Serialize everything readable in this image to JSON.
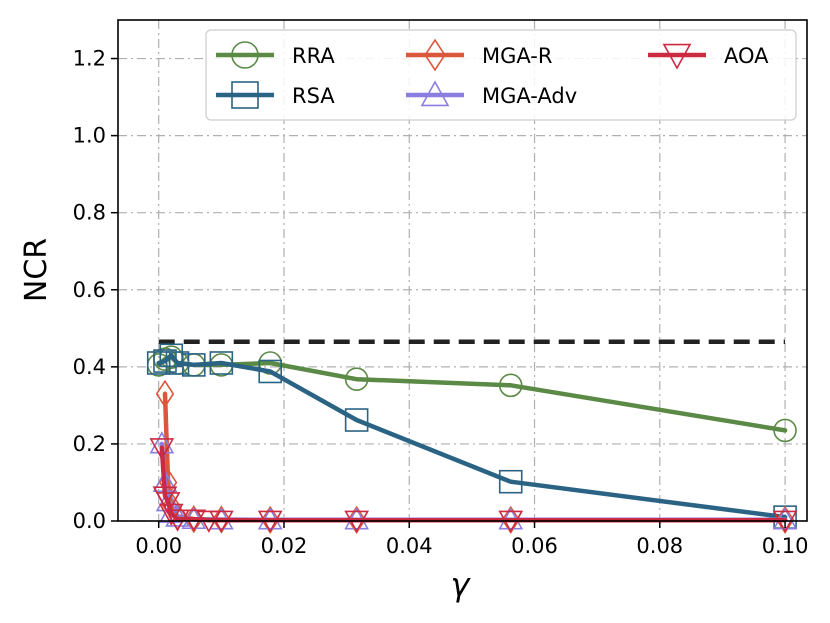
{
  "chart_data": {
    "type": "line",
    "xlabel": "γ",
    "ylabel": "NCR",
    "xlim": [
      -0.0065,
      0.1035
    ],
    "ylim": [
      0.0,
      1.3
    ],
    "xticks": [
      0.0,
      0.02,
      0.04,
      0.06,
      0.08,
      0.1
    ],
    "xtick_labels": [
      "0.00",
      "0.02",
      "0.04",
      "0.06",
      "0.08",
      "0.10"
    ],
    "yticks": [
      0.0,
      0.2,
      0.4,
      0.6,
      0.8,
      1.0,
      1.2
    ],
    "ytick_labels": [
      "0.0",
      "0.2",
      "0.4",
      "0.6",
      "0.8",
      "1.0",
      "1.2"
    ],
    "grid": true,
    "legend_position": "top",
    "reference_line": {
      "y": 0.465,
      "x_range": [
        0.0,
        0.1
      ],
      "style": "dashed",
      "color": "#222222"
    },
    "series": [
      {
        "name": "RRA",
        "color": "#5b8a46",
        "marker": "circle",
        "x": [
          0.0,
          0.001,
          0.002,
          0.003,
          0.0056,
          0.01,
          0.0178,
          0.0316,
          0.0562,
          0.1
        ],
        "y": [
          0.405,
          0.42,
          0.425,
          0.41,
          0.405,
          0.405,
          0.41,
          0.368,
          0.352,
          0.235
        ]
      },
      {
        "name": "RSA",
        "color": "#2b6384",
        "marker": "square",
        "x": [
          0.0,
          0.001,
          0.002,
          0.003,
          0.0056,
          0.01,
          0.0178,
          0.0316,
          0.0562,
          0.1
        ],
        "y": [
          0.41,
          0.415,
          0.43,
          0.41,
          0.405,
          0.41,
          0.388,
          0.262,
          0.102,
          0.01
        ]
      },
      {
        "name": "MGA-R",
        "color": "#d9573b",
        "marker": "diamond",
        "x": [
          0.001,
          0.0015,
          0.002,
          0.003,
          0.0056,
          0.01,
          0.0178,
          0.0316,
          0.0562,
          0.1
        ],
        "y": [
          0.33,
          0.1,
          0.04,
          0.012,
          0.005,
          0.004,
          0.003,
          0.003,
          0.003,
          0.003
        ]
      },
      {
        "name": "MGA-Adv",
        "color": "#8a7fe0",
        "marker": "triangle-up",
        "x": [
          0.0005,
          0.001,
          0.0015,
          0.002,
          0.003,
          0.0056,
          0.01,
          0.0178,
          0.0316,
          0.0562,
          0.1
        ],
        "y": [
          0.2,
          0.1,
          0.05,
          0.02,
          0.01,
          0.004,
          0.003,
          0.003,
          0.003,
          0.003,
          0.003
        ]
      },
      {
        "name": "AOA",
        "color": "#cc2a41",
        "marker": "triangle-down",
        "x": [
          0.0005,
          0.001,
          0.0015,
          0.002,
          0.003,
          0.0056,
          0.008,
          0.01,
          0.0178,
          0.0316,
          0.0562,
          0.1
        ],
        "y": [
          0.19,
          0.065,
          0.05,
          0.02,
          0.005,
          0.005,
          0.002,
          0.002,
          0.002,
          0.002,
          0.002,
          0.002
        ]
      }
    ]
  }
}
